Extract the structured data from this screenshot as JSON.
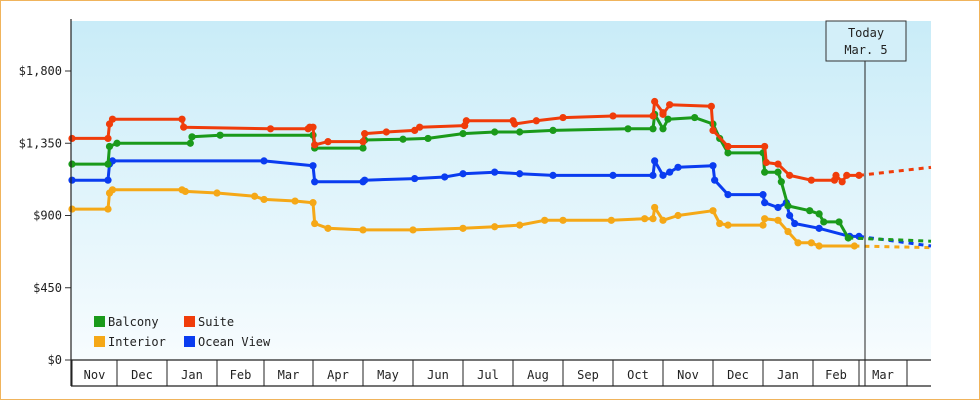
{
  "chart_data": {
    "type": "line",
    "x_unit": "date",
    "x_axis_months": [
      "Nov",
      "Dec",
      "Jan",
      "Feb",
      "Mar",
      "Apr",
      "May",
      "Jun",
      "Jul",
      "Aug",
      "Sep",
      "Oct",
      "Nov",
      "Dec",
      "Jan",
      "Feb",
      "Mar"
    ],
    "y_ticks": [
      "$0",
      "$450",
      "$900",
      "$1,350",
      "$1,800"
    ],
    "ylim": [
      0,
      1800
    ],
    "today_label_line1": "Today",
    "today_label_line2": "Mar. 5",
    "legend_position": "bottom-left",
    "series": [
      {
        "name": "Balcony",
        "color": "#1a9a1a",
        "points": [
          [
            "Nov 1",
            1220
          ],
          [
            "Nov 25",
            1220
          ],
          [
            "Nov 26",
            1330
          ],
          [
            "Dec 1",
            1350
          ],
          [
            "Jan 15",
            1350
          ],
          [
            "Jan 16",
            1390
          ],
          [
            "Feb 3",
            1400
          ],
          [
            "Apr 1",
            1400
          ],
          [
            "Apr 2",
            1320
          ],
          [
            "May 1",
            1320
          ],
          [
            "May 2",
            1370
          ],
          [
            "May 25",
            1375
          ],
          [
            "Jun 10",
            1380
          ],
          [
            "Jul 1",
            1410
          ],
          [
            "Jul 20",
            1420
          ],
          [
            "Aug 5",
            1420
          ],
          [
            "Aug 25",
            1430
          ],
          [
            "Oct 10",
            1440
          ],
          [
            "Oct 25",
            1440
          ],
          [
            "Oct 26",
            1530
          ],
          [
            "Oct 31",
            1440
          ],
          [
            "Nov 4",
            1500
          ],
          [
            "Nov 20",
            1510
          ],
          [
            "Dec 1",
            1470
          ],
          [
            "Dec 5",
            1380
          ],
          [
            "Dec 10",
            1290
          ],
          [
            "Dec 31",
            1290
          ],
          [
            "Jan 2",
            1170
          ],
          [
            "Jan 10",
            1170
          ],
          [
            "Jan 12",
            1110
          ],
          [
            "Jan 16",
            960
          ],
          [
            "Jan 29",
            930
          ],
          [
            "Feb 5",
            910
          ],
          [
            "Feb 8",
            860
          ],
          [
            "Feb 18",
            860
          ],
          [
            "Feb 24",
            760
          ]
        ],
        "projected_end": 740
      },
      {
        "name": "Suite",
        "color": "#f03c0a",
        "points": [
          [
            "Nov 1",
            1380
          ],
          [
            "Nov 25",
            1380
          ],
          [
            "Nov 26",
            1470
          ],
          [
            "Nov 28",
            1500
          ],
          [
            "Jan 10",
            1500
          ],
          [
            "Jan 11",
            1450
          ],
          [
            "Mar 5",
            1440
          ],
          [
            "Mar 28",
            1440
          ],
          [
            "Mar 29",
            1450
          ],
          [
            "Apr 1",
            1450
          ],
          [
            "Apr 2",
            1340
          ],
          [
            "Apr 10",
            1360
          ],
          [
            "May 1",
            1360
          ],
          [
            "May 2",
            1410
          ],
          [
            "May 15",
            1420
          ],
          [
            "Jun 2",
            1430
          ],
          [
            "Jun 5",
            1450
          ],
          [
            "Jul 2",
            1460
          ],
          [
            "Jul 3",
            1490
          ],
          [
            "Aug 1",
            1490
          ],
          [
            "Aug 2",
            1470
          ],
          [
            "Aug 15",
            1490
          ],
          [
            "Sep 1",
            1510
          ],
          [
            "Oct 1",
            1520
          ],
          [
            "Oct 25",
            1520
          ],
          [
            "Oct 26",
            1610
          ],
          [
            "Oct 31",
            1540
          ],
          [
            "Nov 1",
            1530
          ],
          [
            "Nov 5",
            1590
          ],
          [
            "Nov 30",
            1580
          ],
          [
            "Dec 1",
            1430
          ],
          [
            "Dec 10",
            1330
          ],
          [
            "Jan 2",
            1330
          ],
          [
            "Jan 3",
            1230
          ],
          [
            "Jan 10",
            1220
          ],
          [
            "Jan 17",
            1150
          ],
          [
            "Jan 30",
            1120
          ],
          [
            "Feb 15",
            1120
          ],
          [
            "Feb 16",
            1150
          ],
          [
            "Feb 20",
            1110
          ],
          [
            "Feb 23",
            1150
          ],
          [
            "Mar 1",
            1150
          ]
        ],
        "projected_end": 1200
      },
      {
        "name": "Interior",
        "color": "#f5a817",
        "points": [
          [
            "Nov 1",
            940
          ],
          [
            "Nov 25",
            940
          ],
          [
            "Nov 26",
            1040
          ],
          [
            "Nov 28",
            1060
          ],
          [
            "Jan 10",
            1060
          ],
          [
            "Jan 12",
            1050
          ],
          [
            "Feb 1",
            1040
          ],
          [
            "Feb 25",
            1020
          ],
          [
            "Mar 1",
            1000
          ],
          [
            "Mar 20",
            990
          ],
          [
            "Apr 1",
            980
          ],
          [
            "Apr 2",
            850
          ],
          [
            "Apr 10",
            820
          ],
          [
            "May 1",
            810
          ],
          [
            "Jun 1",
            810
          ],
          [
            "Jul 1",
            820
          ],
          [
            "Jul 20",
            830
          ],
          [
            "Aug 5",
            840
          ],
          [
            "Aug 20",
            870
          ],
          [
            "Sep 1",
            870
          ],
          [
            "Sep 30",
            870
          ],
          [
            "Oct 20",
            880
          ],
          [
            "Oct 25",
            880
          ],
          [
            "Oct 26",
            950
          ],
          [
            "Nov 1",
            870
          ],
          [
            "Nov 10",
            900
          ],
          [
            "Dec 1",
            930
          ],
          [
            "Dec 5",
            850
          ],
          [
            "Dec 10",
            840
          ],
          [
            "Dec 31",
            840
          ],
          [
            "Jan 2",
            880
          ],
          [
            "Jan 10",
            870
          ],
          [
            "Jan 16",
            800
          ],
          [
            "Jan 22",
            730
          ],
          [
            "Jan 30",
            730
          ],
          [
            "Feb 5",
            710
          ],
          [
            "Feb 28",
            710
          ]
        ],
        "projected_end": 700
      },
      {
        "name": "Ocean View",
        "color": "#0a3cf0",
        "points": [
          [
            "Nov 1",
            1120
          ],
          [
            "Nov 25",
            1120
          ],
          [
            "Nov 26",
            1220
          ],
          [
            "Nov 28",
            1240
          ],
          [
            "Mar 1",
            1240
          ],
          [
            "Apr 1",
            1210
          ],
          [
            "Apr 2",
            1110
          ],
          [
            "May 1",
            1110
          ],
          [
            "May 2",
            1120
          ],
          [
            "Jun 2",
            1130
          ],
          [
            "Jun 20",
            1140
          ],
          [
            "Jul 1",
            1160
          ],
          [
            "Jul 20",
            1170
          ],
          [
            "Aug 5",
            1160
          ],
          [
            "Aug 25",
            1150
          ],
          [
            "Oct 1",
            1150
          ],
          [
            "Oct 25",
            1150
          ],
          [
            "Oct 26",
            1240
          ],
          [
            "Oct 31",
            1150
          ],
          [
            "Nov 5",
            1170
          ],
          [
            "Nov 10",
            1200
          ],
          [
            "Dec 1",
            1210
          ],
          [
            "Dec 2",
            1120
          ],
          [
            "Dec 10",
            1030
          ],
          [
            "Jan 1",
            1030
          ],
          [
            "Jan 2",
            980
          ],
          [
            "Jan 10",
            950
          ],
          [
            "Jan 15",
            980
          ],
          [
            "Jan 17",
            900
          ],
          [
            "Jan 20",
            850
          ],
          [
            "Feb 5",
            820
          ],
          [
            "Feb 25",
            770
          ],
          [
            "Mar 1",
            770
          ]
        ],
        "projected_end": 710
      }
    ]
  }
}
